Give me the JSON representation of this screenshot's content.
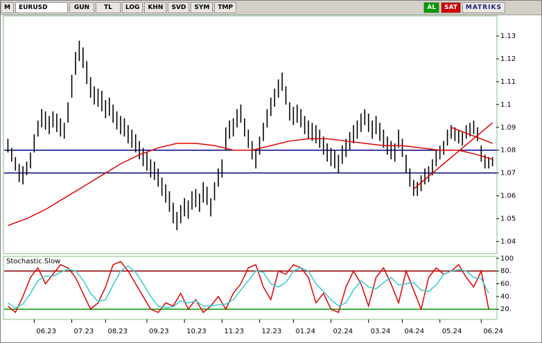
{
  "toolbar": {
    "items": [
      "M",
      "EURUSD",
      "GUN",
      "TL",
      "LOG",
      "KHN",
      "SVD",
      "SYM",
      "TMP",
      "AL",
      "SAT",
      "MATRIKS"
    ]
  },
  "chart_data": [
    {
      "type": "hilo",
      "color": "#000000",
      "xlim": [
        -1,
        130
      ],
      "x": [
        0,
        1,
        2,
        3,
        4,
        5,
        6,
        7,
        8,
        9,
        10,
        11,
        12,
        13,
        14,
        15,
        16,
        17,
        18,
        19,
        20,
        21,
        22,
        23,
        24,
        25,
        26,
        27,
        28,
        29,
        30,
        31,
        32,
        33,
        34,
        35,
        36,
        37,
        38,
        39,
        40,
        41,
        42,
        43,
        44,
        45,
        46,
        47,
        48,
        49,
        50,
        51,
        52,
        53,
        54,
        55,
        56,
        57,
        58,
        59,
        60,
        61,
        62,
        63,
        64,
        65,
        66,
        67,
        68,
        69,
        70,
        71,
        72,
        73,
        74,
        75,
        76,
        77,
        78,
        79,
        80,
        81,
        82,
        83,
        84,
        85,
        86,
        87,
        88,
        89,
        90,
        91,
        92,
        93,
        94,
        95,
        96,
        97,
        98,
        99,
        100,
        101,
        102,
        103,
        104,
        105,
        106,
        107,
        108,
        109,
        110,
        111,
        112,
        113,
        114,
        115,
        116,
        117,
        118,
        119,
        120,
        121,
        122,
        123,
        124,
        125,
        126,
        127,
        128,
        129
      ],
      "high": [
        1.085,
        1.081,
        1.077,
        1.074,
        1.073,
        1.075,
        1.079,
        1.087,
        1.093,
        1.098,
        1.097,
        1.095,
        1.097,
        1.096,
        1.094,
        1.092,
        1.101,
        1.113,
        1.123,
        1.128,
        1.125,
        1.119,
        1.112,
        1.108,
        1.107,
        1.106,
        1.102,
        1.103,
        1.1,
        1.097,
        1.095,
        1.094,
        1.091,
        1.089,
        1.087,
        1.084,
        1.081,
        1.079,
        1.076,
        1.075,
        1.072,
        1.068,
        1.065,
        1.062,
        1.057,
        1.053,
        1.056,
        1.059,
        1.058,
        1.062,
        1.063,
        1.061,
        1.066,
        1.064,
        1.059,
        1.066,
        1.072,
        1.076,
        1.09,
        1.093,
        1.094,
        1.098,
        1.1,
        1.094,
        1.089,
        1.084,
        1.08,
        1.086,
        1.092,
        1.098,
        1.103,
        1.107,
        1.111,
        1.114,
        1.108,
        1.101,
        1.099,
        1.1,
        1.098,
        1.095,
        1.093,
        1.092,
        1.091,
        1.089,
        1.086,
        1.083,
        1.081,
        1.08,
        1.078,
        1.082,
        1.085,
        1.088,
        1.091,
        1.093,
        1.096,
        1.098,
        1.096,
        1.093,
        1.095,
        1.092,
        1.089,
        1.086,
        1.084,
        1.083,
        1.089,
        1.085,
        1.078,
        1.072,
        1.067,
        1.066,
        1.069,
        1.072,
        1.073,
        1.076,
        1.08,
        1.082,
        1.084,
        1.089,
        1.091,
        1.09,
        1.089,
        1.088,
        1.091,
        1.092,
        1.093,
        1.09,
        1.082,
        1.078,
        1.077,
        1.077
      ],
      "low": [
        1.079,
        1.075,
        1.071,
        1.066,
        1.065,
        1.069,
        1.072,
        1.079,
        1.086,
        1.09,
        1.089,
        1.087,
        1.09,
        1.088,
        1.086,
        1.085,
        1.092,
        1.103,
        1.113,
        1.119,
        1.116,
        1.109,
        1.103,
        1.1,
        1.099,
        1.097,
        1.094,
        1.095,
        1.092,
        1.089,
        1.087,
        1.086,
        1.083,
        1.081,
        1.079,
        1.076,
        1.073,
        1.071,
        1.068,
        1.067,
        1.064,
        1.06,
        1.057,
        1.053,
        1.048,
        1.045,
        1.048,
        1.051,
        1.05,
        1.054,
        1.055,
        1.053,
        1.057,
        1.056,
        1.051,
        1.058,
        1.064,
        1.068,
        1.08,
        1.085,
        1.086,
        1.09,
        1.092,
        1.086,
        1.081,
        1.076,
        1.072,
        1.078,
        1.084,
        1.09,
        1.095,
        1.099,
        1.103,
        1.106,
        1.1,
        1.093,
        1.091,
        1.092,
        1.09,
        1.087,
        1.085,
        1.084,
        1.083,
        1.081,
        1.078,
        1.075,
        1.073,
        1.072,
        1.07,
        1.074,
        1.077,
        1.08,
        1.083,
        1.085,
        1.088,
        1.091,
        1.088,
        1.085,
        1.087,
        1.084,
        1.081,
        1.078,
        1.076,
        1.075,
        1.081,
        1.077,
        1.07,
        1.064,
        1.06,
        1.06,
        1.062,
        1.065,
        1.066,
        1.069,
        1.073,
        1.076,
        1.078,
        1.082,
        1.085,
        1.084,
        1.083,
        1.082,
        1.085,
        1.086,
        1.087,
        1.084,
        1.075,
        1.072,
        1.072,
        1.073
      ],
      "overlays": [
        {
          "color": "#e00000",
          "x": [
            0,
            5,
            10,
            15,
            20,
            25,
            30,
            35,
            40,
            45,
            50,
            55,
            60,
            65,
            70,
            75,
            80,
            85,
            90,
            95,
            100,
            105,
            110,
            115,
            120,
            125,
            129
          ],
          "values": [
            1.047,
            1.05,
            1.054,
            1.059,
            1.064,
            1.069,
            1.074,
            1.078,
            1.081,
            1.083,
            1.083,
            1.082,
            1.08,
            1.08,
            1.082,
            1.084,
            1.085,
            1.085,
            1.084,
            1.083,
            1.082,
            1.082,
            1.081,
            1.08,
            1.08,
            1.078,
            1.076
          ]
        },
        {
          "color": "#e00000",
          "x": [
            108,
            129
          ],
          "values": [
            1.063,
            1.092
          ]
        },
        {
          "color": "#e00000",
          "x": [
            118,
            129
          ],
          "values": [
            1.09,
            1.083
          ]
        }
      ],
      "hlines": [
        {
          "value": 1.08,
          "color": "#000080"
        },
        {
          "value": 1.07,
          "color": "#000080"
        }
      ],
      "ylim": [
        1.035,
        1.1385
      ],
      "yticks": [
        1.04,
        1.05,
        1.06,
        1.07,
        1.08,
        1.09,
        1.1,
        1.11,
        1.12,
        1.13
      ]
    },
    {
      "type": "line",
      "title": "Stochastic.Slow",
      "xlim": [
        -1,
        130
      ],
      "x": [
        0,
        2,
        4,
        6,
        8,
        10,
        12,
        14,
        16,
        18,
        20,
        22,
        24,
        26,
        28,
        30,
        32,
        34,
        36,
        38,
        40,
        42,
        44,
        46,
        48,
        50,
        52,
        54,
        56,
        58,
        60,
        62,
        64,
        66,
        68,
        70,
        72,
        74,
        76,
        78,
        80,
        82,
        84,
        86,
        88,
        90,
        92,
        94,
        96,
        98,
        100,
        102,
        104,
        106,
        108,
        110,
        112,
        114,
        116,
        118,
        120,
        122,
        124,
        126,
        128
      ],
      "series": [
        {
          "color": "#e00000",
          "values": [
            25,
            15,
            40,
            70,
            85,
            60,
            75,
            90,
            85,
            70,
            45,
            20,
            30,
            55,
            90,
            95,
            80,
            60,
            40,
            20,
            15,
            30,
            25,
            45,
            20,
            35,
            15,
            25,
            40,
            20,
            45,
            60,
            85,
            90,
            55,
            35,
            80,
            75,
            90,
            85,
            70,
            30,
            45,
            20,
            15,
            55,
            80,
            60,
            25,
            70,
            85,
            60,
            30,
            80,
            50,
            20,
            70,
            85,
            75,
            80,
            90,
            70,
            55,
            80,
            20
          ]
        },
        {
          "color": "#33cccc",
          "values": [
            30,
            22,
            28,
            45,
            65,
            72,
            72,
            78,
            83,
            80,
            66,
            45,
            32,
            35,
            58,
            80,
            88,
            78,
            60,
            40,
            25,
            22,
            24,
            33,
            30,
            33,
            25,
            25,
            27,
            28,
            35,
            50,
            65,
            80,
            78,
            60,
            55,
            62,
            80,
            85,
            80,
            60,
            48,
            35,
            25,
            30,
            50,
            65,
            55,
            52,
            62,
            70,
            58,
            60,
            62,
            50,
            48,
            58,
            75,
            80,
            82,
            80,
            70,
            68,
            45
          ]
        }
      ],
      "hlines": [
        {
          "value": 80,
          "color": "#8b0000"
        },
        {
          "value": 20,
          "color": "#009900"
        }
      ],
      "ylim": [
        5,
        102
      ],
      "yticks": [
        {
          "value": 20,
          "label": "20."
        },
        {
          "value": 40,
          "label": "40."
        },
        {
          "value": 60,
          "label": "60."
        },
        {
          "value": 80,
          "label": "80."
        },
        100
      ],
      "xticks": [
        {
          "value": 7,
          "label": "06.23"
        },
        {
          "value": 17,
          "label": "07.23"
        },
        {
          "value": 26,
          "label": "08.23"
        },
        {
          "value": 37,
          "label": "09.23"
        },
        {
          "value": 47,
          "label": "10.23"
        },
        {
          "value": 57,
          "label": "11.23"
        },
        {
          "value": 67,
          "label": "12.23"
        },
        {
          "value": 76,
          "label": "01.24"
        },
        {
          "value": 86,
          "label": "02.24"
        },
        {
          "value": 96,
          "label": "03.24"
        },
        {
          "value": 105,
          "label": "04.24"
        },
        {
          "value": 115,
          "label": "05.24"
        },
        {
          "value": 126,
          "label": "06.24"
        }
      ]
    }
  ]
}
